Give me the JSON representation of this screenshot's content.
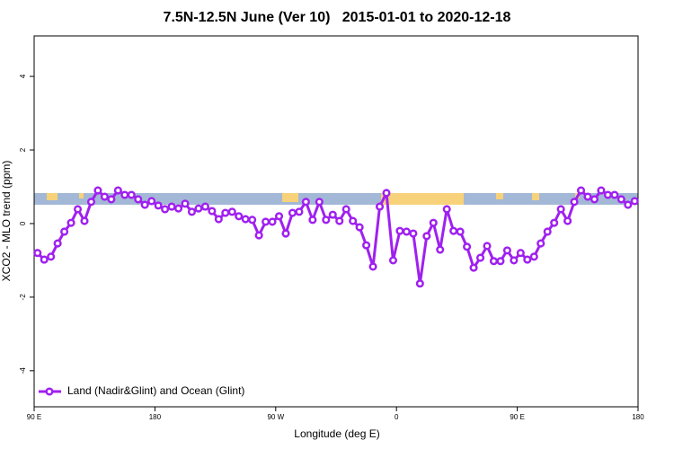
{
  "chart_data": {
    "type": "line",
    "title": "7.5N-12.5N June (Ver 10)   2015-01-01 to 2020-12-18",
    "x_label": "Longitude (deg E)",
    "y_label": "XCO2 - MLO trend (ppm)",
    "x": [
      92.5,
      97.5,
      102.5,
      107.5,
      112.5,
      117.5,
      122.5,
      127.5,
      132.5,
      137.5,
      142.5,
      147.5,
      152.5,
      157.5,
      162.5,
      167.5,
      172.5,
      177.5,
      182.5,
      187.5,
      192.5,
      197.5,
      202.5,
      207.5,
      212.5,
      217.5,
      222.5,
      227.5,
      232.5,
      237.5,
      242.5,
      247.5,
      252.5,
      257.5,
      262.5,
      267.5,
      272.5,
      277.5,
      282.5,
      287.5,
      292.5,
      297.5,
      302.5,
      307.5,
      312.5,
      317.5,
      322.5,
      327.5,
      332.5,
      337.5,
      342.5,
      347.5,
      352.5,
      357.5,
      362.5,
      367.5,
      372.5,
      377.5,
      382.5,
      387.5,
      392.5,
      397.5,
      402.5,
      407.5,
      412.5,
      417.5,
      422.5,
      427.5,
      432.5,
      437.5,
      442.5,
      447.5,
      452.5,
      457.5,
      462.5,
      467.5,
      472.5,
      477.5,
      482.5,
      487.5,
      492.5,
      497.5,
      502.5,
      507.5,
      512.5,
      517.5,
      522.5,
      527.5,
      532.5,
      537.5
    ],
    "series": [
      {
        "name": "Land (Nadir&Glint) and Ocean (Glint)",
        "color": "#a020f0",
        "values": [
          -0.8,
          -0.98,
          -0.9,
          -0.54,
          -0.22,
          0.02,
          0.39,
          0.07,
          0.59,
          0.9,
          0.73,
          0.66,
          0.9,
          0.78,
          0.78,
          0.66,
          0.51,
          0.61,
          0.49,
          0.39,
          0.46,
          0.41,
          0.54,
          0.32,
          0.41,
          0.46,
          0.34,
          0.12,
          0.29,
          0.32,
          0.2,
          0.12,
          0.1,
          -0.32,
          0.05,
          0.05,
          0.2,
          -0.27,
          0.29,
          0.32,
          0.59,
          0.1,
          0.59,
          0.1,
          0.24,
          0.07,
          0.39,
          0.07,
          -0.1,
          -0.59,
          -1.17,
          0.46,
          0.83,
          -1.0,
          -0.2,
          -0.22,
          -0.27,
          -1.63,
          -0.34,
          0.02,
          -0.71,
          0.39,
          -0.2,
          -0.22,
          -0.63,
          -1.2,
          -0.93,
          -0.61,
          -1.02,
          -1.02,
          -0.73,
          -1.0,
          -0.8,
          -0.98,
          -0.9,
          -0.54,
          -0.22,
          0.02,
          0.39,
          0.07,
          0.59,
          0.9,
          0.73,
          0.66,
          0.9,
          0.78,
          0.78,
          0.66,
          0.51,
          0.61
        ]
      }
    ],
    "xlim": [
      90,
      540
    ],
    "xticks": [
      {
        "value": 90,
        "label": "90 E"
      },
      {
        "value": 180,
        "label": "180"
      },
      {
        "value": 270,
        "label": "90 W"
      },
      {
        "value": 360,
        "label": "0"
      },
      {
        "value": 450,
        "label": "90 E"
      },
      {
        "value": 540,
        "label": "180"
      }
    ],
    "ylim": [
      -4.98,
      5.1
    ],
    "yticks": [
      -4,
      -2,
      0,
      2,
      4
    ],
    "legend": "bottom-left"
  }
}
